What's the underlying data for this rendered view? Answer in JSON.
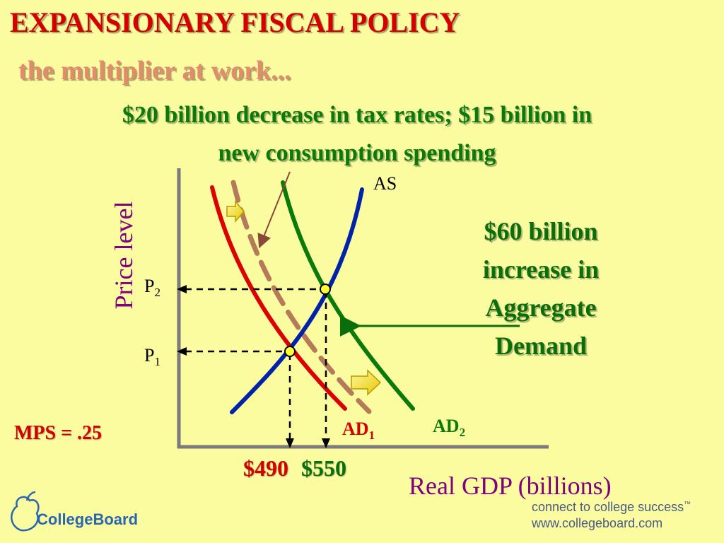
{
  "slide": {
    "title": "EXPANSIONARY FISCAL POLICY",
    "subtitle": "the multiplier at work...",
    "headline_line1": "$20 billion decrease in tax rates; $15 billion in",
    "headline_line2": "new consumption spending",
    "mps_text": "MPS = .25"
  },
  "effect_label": {
    "line1": "$60 billion",
    "line2": "increase in",
    "line3": "Aggregate",
    "line4": "Demand"
  },
  "axes": {
    "ylabel": "Price level",
    "xlabel": "Real GDP (billions)"
  },
  "curves": {
    "as_label": "AS",
    "ad1_label": "AD",
    "ad1_sub": "1",
    "ad2_label": "AD",
    "ad2_sub": "2"
  },
  "points": {
    "p1_label": "P",
    "p1_sub": "1",
    "p2_label": "P",
    "p2_sub": "2",
    "gdp1": "$490",
    "gdp2": "$550"
  },
  "footer": {
    "logo": "CollegeBoard",
    "tagline": "connect to college success",
    "trademark": "™",
    "url": "www.collegeboard.com"
  },
  "colors": {
    "background": "#fbfba0",
    "title": "#d40000",
    "subtitle": "#e58a6a",
    "headline": "#0a7a0a",
    "axis_labels": "#800080",
    "as_curve": "#0022aa",
    "ad1_curve": "#dd0000",
    "ad2_curve": "#0a7a0a",
    "intermediate_curve": "#b47a5a",
    "arrow_fill": "#f2e000"
  }
}
